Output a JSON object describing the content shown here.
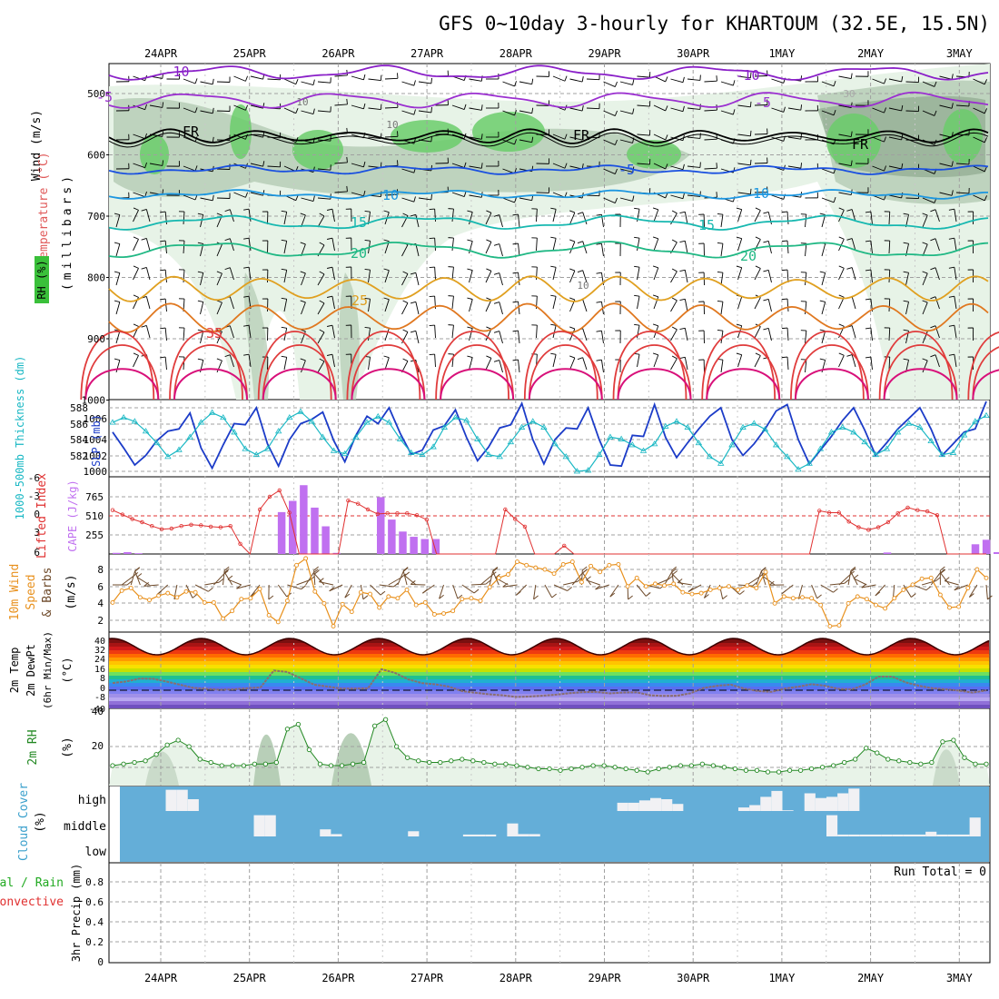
{
  "title": "GFS 0~10day 3-hourly for KHARTOUM (32.5E, 15.5N)",
  "dates": [
    "24APR",
    "25APR",
    "26APR",
    "27APR",
    "28APR",
    "29APR",
    "30APR",
    "1MAY",
    "2MAY",
    "3MAY"
  ],
  "colors": {
    "grid": "#a0a0a0",
    "rh_fill_light": "#e6f2e6",
    "rh_fill_mid": "#b9cfb9",
    "rh_fill_dark": "#8faa8f",
    "rh_fill_green": "#6bcd6b",
    "temp_violet": "#8a20c8",
    "temp_purple2": "#9b30d0",
    "temp_freeze": "#000000",
    "temp_blue": "#1a50e0",
    "temp_ltblue": "#1c96e0",
    "temp_teal": "#17b8b0",
    "temp_green": "#20b884",
    "temp_orange": "#e0a020",
    "temp_dkorange": "#e07820",
    "temp_red": "#e03c3c",
    "temp_magenta": "#d8107a",
    "slp": "#1c3cc8",
    "thickness": "#1ab8c4",
    "cape": "#c070f0",
    "lifted": "#e03030",
    "wind10": "#e8901c",
    "barb": "#6e4a2a",
    "dewpt": "#8a6e6e",
    "rh2m_line": "#228822",
    "rh2m_fill": "#e8f3e8",
    "cloud_bg": "#64aed8",
    "cloud_bar": "#f1f1f4",
    "precip_total": "#22aa22",
    "precip_conv": "#e03030"
  },
  "panels": {
    "upper": {
      "ylabel_wind": "Wind (m/s)",
      "ylabel_temp": "Temperature (°C)",
      "ylabel_rh": "RH (%)",
      "ylabel_mb": "(millibars)",
      "yticks": [
        "500",
        "600",
        "700",
        "800",
        "900",
        "1000"
      ],
      "contour_labels": [
        "-10",
        "-10",
        "-5",
        "-5",
        "FR",
        "FR",
        "FR",
        "-5",
        "10",
        "10",
        "15",
        "15",
        "20",
        "20",
        "25",
        "35",
        "10",
        "10",
        "10",
        "30"
      ]
    },
    "slp": {
      "ylabel_thick": "1000-500mb Thickness (dm)",
      "ylabel_slp": "SLP (mb)",
      "yticks_left": [
        "588",
        "586",
        "584",
        "582"
      ],
      "yticks_right": [
        "1006",
        "1004",
        "1002",
        "1000"
      ]
    },
    "cape": {
      "ylabel_li": "Lifted Index",
      "ylabel_cape": "CAPE (J/kg)",
      "yticks_left": [
        "-6",
        "-3",
        "0",
        "3",
        "6"
      ],
      "yticks_right": [
        "765",
        "510",
        "255"
      ]
    },
    "wind10": {
      "ylabel1": "10m Wind",
      "ylabel2": "Speed",
      "ylabel3": "& Barbs",
      "ylabel_unit": "(m/s)",
      "yticks": [
        "8",
        "6",
        "4",
        "2"
      ]
    },
    "temp2m": {
      "ylabel1": "2m Temp",
      "ylabel2": "2m DewPt",
      "ylabel3": "(6hr Min/Max)",
      "ylabel_unit": "(°C)",
      "yticks": [
        "40",
        "32",
        "24",
        "16",
        "8",
        "0",
        "-8",
        "-40"
      ]
    },
    "rh2m": {
      "ylabel": "2m RH",
      "ylabel_unit": "(%)",
      "yticks": [
        "40",
        "20"
      ]
    },
    "cloud": {
      "ylabel": "Cloud Cover",
      "ylabel_unit": "(%)",
      "levels": [
        "high",
        "middle",
        "low"
      ]
    },
    "precip": {
      "ylabel_total": "Total / Rain",
      "ylabel_conv": "Convective",
      "ylabel_axis": "3hr Precip (mm)",
      "yticks": [
        "0.8",
        "0.6",
        "0.4",
        "0.2",
        "0"
      ],
      "run_total": "Run Total = 0"
    }
  },
  "chart_data": [
    {
      "type": "line",
      "name": "SLP",
      "units": "mb",
      "values": [
        1003.7,
        1002.2,
        1000.6,
        1001.5,
        1002.9,
        1003.8,
        1004.0,
        1005.5,
        1002.2,
        1000.3,
        1002.5,
        1004.5,
        1004.4,
        1006.0,
        1002.6,
        1000.5,
        1003.0,
        1004.5,
        1004.9,
        1005.6,
        1002.9,
        1000.9,
        1003.4,
        1005.2,
        1004.5,
        1006.0,
        1003.6,
        1001.6,
        1002.0,
        1003.9,
        1004.3,
        1005.8,
        1003.2,
        1001.0,
        1002.3,
        1004.1,
        1004.4,
        1006.4,
        1003.0,
        1000.7,
        1003.0,
        1004.1,
        1004.0,
        1006.0,
        1003.0,
        1000.6,
        1000.5,
        1003.4,
        1003.3,
        1006.3,
        1003.2,
        1001.3,
        1002.7,
        1004.0,
        1005.2,
        1006.0,
        1003.0,
        1001.5,
        1002.6,
        1004.0,
        1005.7,
        1006.3,
        1003.0,
        1000.7,
        1002.0,
        1003.3,
        1004.8,
        1006.0,
        1003.9,
        1001.5,
        1002.7,
        1004.0,
        1005.0,
        1006.0,
        1004.0,
        1001.5,
        1002.6,
        1003.7,
        1004.0,
        1008.2
      ],
      "ylim": [
        999.5,
        1007.5
      ]
    },
    {
      "type": "line",
      "name": "Thickness",
      "units": "dm",
      "values": [
        586.5,
        587.0,
        586.6,
        585.6,
        584.4,
        583.0,
        583.7,
        585.0,
        586.5,
        587.5,
        587.0,
        585.5,
        583.8,
        583.2,
        583.8,
        585.6,
        587.0,
        587.6,
        586.6,
        585.0,
        583.6,
        583.3,
        585.0,
        586.5,
        587.1,
        586.5,
        584.8,
        583.4,
        583.2,
        584.0,
        586.0,
        587.0,
        586.7,
        584.8,
        583.2,
        583.0,
        584.5,
        586.0,
        586.6,
        586.0,
        584.3,
        583.0,
        581.5,
        581.6,
        583.2,
        585.0,
        584.8,
        584.2,
        583.6,
        584.3,
        586.1,
        586.6,
        586.0,
        584.4,
        583.0,
        582.3,
        584.2,
        586.0,
        586.4,
        585.8,
        584.2,
        583.0,
        581.7,
        582.3,
        583.8,
        585.5,
        586.0,
        585.5,
        584.5,
        583.2,
        583.8,
        585.5,
        586.4,
        586.0,
        584.6,
        583.2,
        583.4,
        585.2,
        586.6,
        587.2
      ],
      "ylim": [
        580.5,
        588.5
      ]
    },
    {
      "type": "bar",
      "name": "CAPE",
      "units": "J/kg",
      "bars": [
        [
          0,
          15
        ],
        [
          1,
          25
        ],
        [
          2,
          10
        ],
        [
          15,
          560
        ],
        [
          16,
          710
        ],
        [
          17,
          920
        ],
        [
          18,
          620
        ],
        [
          19,
          370
        ],
        [
          20,
          15
        ],
        [
          24,
          760
        ],
        [
          25,
          460
        ],
        [
          26,
          300
        ],
        [
          27,
          230
        ],
        [
          28,
          200
        ],
        [
          29,
          200
        ],
        [
          70,
          20
        ],
        [
          78,
          130
        ],
        [
          79,
          190
        ],
        [
          80,
          25
        ],
        [
          81,
          15
        ]
      ],
      "ylim": [
        0,
        765
      ]
    },
    {
      "type": "line",
      "name": "Lifted Index",
      "values": [
        -0.9,
        -0.2,
        0.5,
        1.0,
        1.6,
        2.1,
        2.0,
        1.6,
        1.4,
        1.5,
        1.7,
        1.8,
        1.6,
        4.4,
        6.0,
        -1.0,
        -3.0,
        -4.0,
        -0.5,
        6.0,
        6.0,
        6.0,
        6.0,
        6.0,
        -2.4,
        -1.9,
        -1.0,
        -0.3,
        -0.4,
        -0.4,
        -0.4,
        -0.1,
        0.6,
        6.0,
        6.0,
        6.0,
        6.0,
        6.0,
        6.0,
        6.0,
        -1.0,
        0.5,
        1.7,
        6.0,
        6.0,
        6.0,
        4.7,
        6.0,
        6.0,
        6.0,
        6.0,
        6.0,
        6.0,
        6.0,
        6.0,
        6.0,
        6.0,
        6.0,
        6.0,
        6.0,
        6.0,
        6.0,
        6.0,
        6.0,
        6.0,
        6.0,
        6.0,
        6.0,
        6.0,
        6.0,
        6.0,
        6.0,
        -0.8,
        -0.5,
        -0.5,
        0.9,
        1.8,
        2.2,
        1.8,
        1.0,
        -0.4,
        -1.3,
        -0.9,
        -0.7,
        -0.1,
        6.0,
        6.0,
        6.0,
        6.0,
        6.0
      ],
      "ylim": [
        -6,
        6
      ]
    },
    {
      "type": "line",
      "name": "10m Wind Speed",
      "units": "m/s",
      "values": [
        4.1,
        5.5,
        5.8,
        4.7,
        4.4,
        4.9,
        5.2,
        4.7,
        5.4,
        5.3,
        4.1,
        4.1,
        2.2,
        3.1,
        4.5,
        4.6,
        5.7,
        2.6,
        1.8,
        4.3,
        8.5,
        9.3,
        5.4,
        4.0,
        1.3,
        3.9,
        3.0,
        5.3,
        5.1,
        3.5,
        4.8,
        4.6,
        5.6,
        3.8,
        4.1,
        2.7,
        2.8,
        3.1,
        4.5,
        4.6,
        4.3,
        5.9,
        7.0,
        7.4,
        8.9,
        8.5,
        8.2,
        8.0,
        7.5,
        8.6,
        8.9,
        6.5,
        8.4,
        7.7,
        8.5,
        8.6,
        6.0,
        7.0,
        6.0,
        6.3,
        6.1,
        6.3,
        5.3,
        5.1,
        5.2,
        5.6,
        5.8,
        6.0,
        5.6,
        6.1,
        5.8,
        7.7,
        4.0,
        4.8,
        4.6,
        4.7,
        4.6,
        3.8,
        1.3,
        1.4,
        4.0,
        4.8,
        4.5,
        3.8,
        3.4,
        4.6,
        5.6,
        6.2,
        6.9,
        7.0,
        5.0,
        3.5,
        3.6,
        5.8,
        8.0,
        7.0
      ],
      "ylim": [
        0.8,
        9.5
      ]
    },
    {
      "type": "area",
      "name": "2m DewPt",
      "units": "°C",
      "values": [
        4.5,
        5.5,
        7.3,
        7.2,
        5.5,
        3.5,
        1.5,
        0.8,
        0.3,
        0.5,
        1.2,
        1.8,
        12.4,
        11.5,
        7.5,
        3.5,
        2.3,
        1.0,
        1.0,
        1.2,
        13.2,
        11.0,
        6.8,
        4.5,
        3.7,
        2.3,
        -0.6,
        -1.6,
        -2.6,
        -3.2,
        -4.2,
        -4.0,
        -3.4,
        -2.8,
        -1.9,
        -1.2,
        -1.1,
        -2.0,
        -1.4,
        -1.3,
        -3.2,
        -3.6,
        -3.5,
        -1.9,
        1.5,
        2.8,
        3.5,
        1.0,
        -0.5,
        -1.0,
        1.0,
        2.2,
        3.8,
        2.8,
        0.8,
        0.5,
        3.6,
        8.6,
        8.6,
        5.0,
        2.8,
        1.2,
        0.5,
        -0.3,
        -1.5,
        -0.1
      ],
      "ylim": [
        -40,
        40
      ]
    },
    {
      "type": "area",
      "name": "2m RH",
      "units": "%",
      "values": [
        8,
        9,
        10,
        11,
        15,
        21,
        24,
        20,
        12,
        10,
        8,
        8,
        8,
        9,
        9,
        10,
        31,
        34,
        18,
        9,
        8,
        8,
        9,
        10,
        33,
        37,
        20,
        13,
        11,
        10,
        10,
        11,
        12,
        11,
        10,
        9,
        9,
        8,
        7,
        6,
        6,
        5,
        6,
        7,
        8,
        8,
        7,
        6,
        5,
        4,
        6,
        7,
        8,
        8,
        9,
        8,
        7,
        6,
        5,
        5,
        4,
        4,
        5,
        5,
        6,
        7,
        8,
        10,
        12,
        19,
        16,
        12,
        11,
        10,
        9,
        10,
        23,
        24,
        13,
        9,
        9
      ],
      "ylim": [
        0,
        40
      ]
    },
    {
      "type": "bar",
      "name": "Cloud Cover",
      "levels": [
        "high",
        "middle",
        "low"
      ],
      "high": [
        [
          4,
          90
        ],
        [
          5,
          90
        ],
        [
          6,
          50
        ],
        [
          45,
          35
        ],
        [
          46,
          35
        ],
        [
          47,
          45
        ],
        [
          48,
          55
        ],
        [
          49,
          50
        ],
        [
          50,
          30
        ],
        [
          56,
          15
        ],
        [
          57,
          25
        ],
        [
          58,
          60
        ],
        [
          59,
          85
        ],
        [
          60,
          3
        ],
        [
          62,
          75
        ],
        [
          63,
          55
        ],
        [
          64,
          60
        ],
        [
          65,
          75
        ],
        [
          66,
          95
        ]
      ],
      "middle": [
        [
          12,
          90
        ],
        [
          13,
          90
        ],
        [
          18,
          30
        ],
        [
          19,
          10
        ],
        [
          26,
          22
        ],
        [
          31,
          8
        ],
        [
          32,
          8
        ],
        [
          33,
          8
        ],
        [
          35,
          55
        ],
        [
          36,
          10
        ],
        [
          37,
          10
        ],
        [
          64,
          90
        ],
        [
          65,
          8
        ],
        [
          66,
          8
        ],
        [
          67,
          8
        ],
        [
          68,
          8
        ],
        [
          69,
          8
        ],
        [
          70,
          8
        ],
        [
          71,
          8
        ],
        [
          72,
          8
        ],
        [
          73,
          20
        ],
        [
          74,
          8
        ],
        [
          75,
          8
        ],
        [
          76,
          8
        ],
        [
          77,
          80
        ]
      ]
    }
  ]
}
